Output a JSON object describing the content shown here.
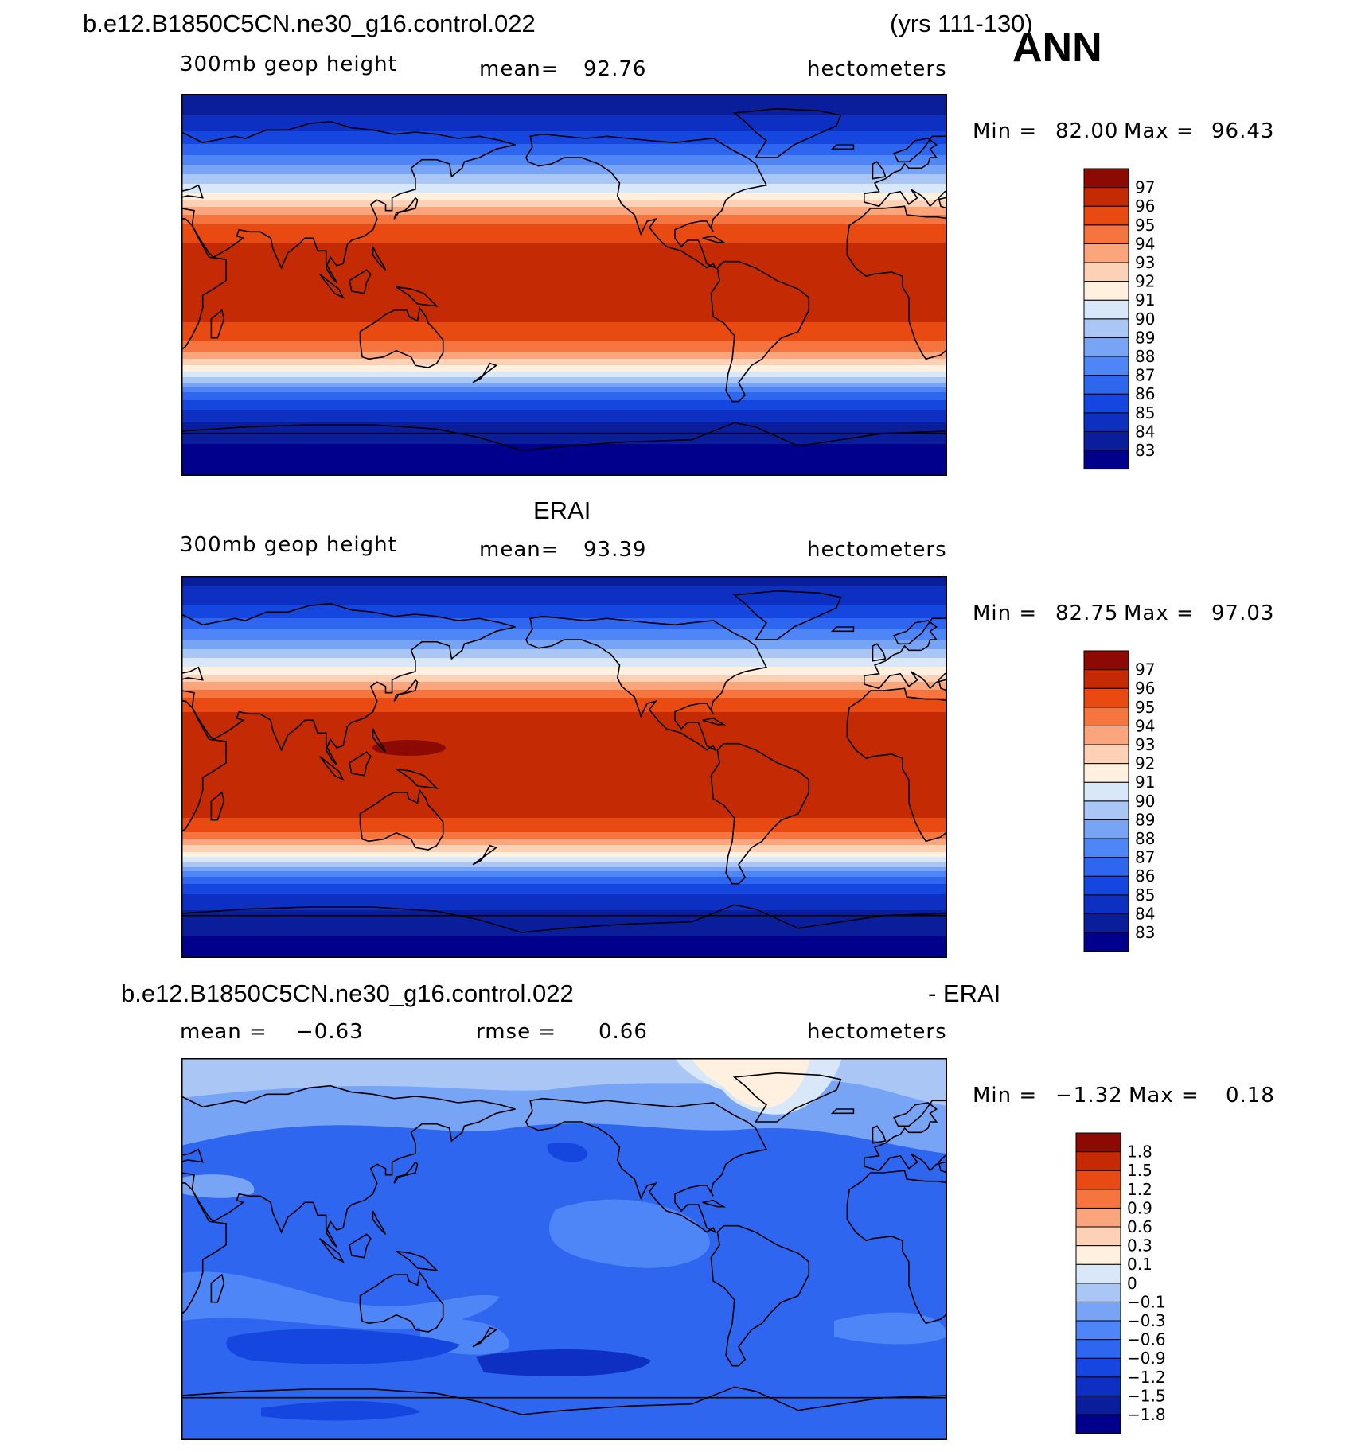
{
  "header": {
    "case_name": "b.e12.B1850C5CN.ne30_g16.control.022",
    "years": "(yrs 111-130)",
    "season": "ANN"
  },
  "colors": {
    "land_outline": "#000000",
    "panel_border": "#000000"
  },
  "chart_data": [
    {
      "type": "heatmap",
      "panel": "model",
      "variable": "300mb geop height",
      "mean_label": "mean=",
      "mean_value": "92.76",
      "units": "hectometers",
      "min_label": "Min =",
      "min_value": "82.00",
      "max_label": "Max =",
      "max_value": "96.43",
      "colorbar": {
        "labels": [
          "83",
          "84",
          "85",
          "86",
          "87",
          "88",
          "89",
          "90",
          "91",
          "92",
          "93",
          "94",
          "95",
          "96",
          "97"
        ],
        "colors": [
          "#00008c",
          "#0a1e9c",
          "#0d30c2",
          "#1547e0",
          "#2f66f0",
          "#4f86f7",
          "#78a4f5",
          "#a9c6f5",
          "#d8e8f8",
          "#fff0e0",
          "#fdd1b6",
          "#fba57c",
          "#f6753f",
          "#e84a12",
          "#c42a04",
          "#8c0a02"
        ]
      },
      "zonal_profile": [
        {
          "lat": 90,
          "value": 83.0
        },
        {
          "lat": 80,
          "value": 84.0
        },
        {
          "lat": 70,
          "value": 85.3
        },
        {
          "lat": 60,
          "value": 87.2
        },
        {
          "lat": 50,
          "value": 89.5
        },
        {
          "lat": 45,
          "value": 90.6
        },
        {
          "lat": 40,
          "value": 92.0
        },
        {
          "lat": 35,
          "value": 93.5
        },
        {
          "lat": 30,
          "value": 94.8
        },
        {
          "lat": 20,
          "value": 96.0
        },
        {
          "lat": 10,
          "value": 96.3
        },
        {
          "lat": 0,
          "value": 96.4
        },
        {
          "lat": -10,
          "value": 96.3
        },
        {
          "lat": -20,
          "value": 95.9
        },
        {
          "lat": -30,
          "value": 94.5
        },
        {
          "lat": -40,
          "value": 91.3
        },
        {
          "lat": -45,
          "value": 89.5
        },
        {
          "lat": -50,
          "value": 87.2
        },
        {
          "lat": -55,
          "value": 85.8
        },
        {
          "lat": -60,
          "value": 84.8
        },
        {
          "lat": -65,
          "value": 84.0
        },
        {
          "lat": -70,
          "value": 83.2
        },
        {
          "lat": -90,
          "value": 82.4
        }
      ]
    },
    {
      "type": "heatmap",
      "panel": "observations",
      "title": "ERAI",
      "variable": "300mb geop height",
      "mean_label": "mean=",
      "mean_value": "93.39",
      "units": "hectometers",
      "min_label": "Min =",
      "min_value": "82.75",
      "max_label": "Max =",
      "max_value": "97.03",
      "colorbar": {
        "labels": [
          "83",
          "84",
          "85",
          "86",
          "87",
          "88",
          "89",
          "90",
          "91",
          "92",
          "93",
          "94",
          "95",
          "96",
          "97"
        ],
        "colors": [
          "#00008c",
          "#0a1e9c",
          "#0d30c2",
          "#1547e0",
          "#2f66f0",
          "#4f86f7",
          "#78a4f5",
          "#a9c6f5",
          "#d8e8f8",
          "#fff0e0",
          "#fdd1b6",
          "#fba57c",
          "#f6753f",
          "#e84a12",
          "#c42a04",
          "#8c0a02"
        ]
      },
      "zonal_profile": [
        {
          "lat": 90,
          "value": 83.5
        },
        {
          "lat": 80,
          "value": 84.5
        },
        {
          "lat": 70,
          "value": 86.0
        },
        {
          "lat": 60,
          "value": 88.0
        },
        {
          "lat": 50,
          "value": 90.3
        },
        {
          "lat": 45,
          "value": 91.6
        },
        {
          "lat": 40,
          "value": 93.0
        },
        {
          "lat": 35,
          "value": 94.4
        },
        {
          "lat": 30,
          "value": 95.6
        },
        {
          "lat": 20,
          "value": 96.6
        },
        {
          "lat": 10,
          "value": 96.9
        },
        {
          "lat": 0,
          "value": 96.9
        },
        {
          "lat": -10,
          "value": 96.8
        },
        {
          "lat": -20,
          "value": 96.5
        },
        {
          "lat": -30,
          "value": 95.2
        },
        {
          "lat": -40,
          "value": 92.0
        },
        {
          "lat": -45,
          "value": 90.0
        },
        {
          "lat": -50,
          "value": 87.6
        },
        {
          "lat": -55,
          "value": 86.0
        },
        {
          "lat": -60,
          "value": 85.0
        },
        {
          "lat": -65,
          "value": 84.2
        },
        {
          "lat": -70,
          "value": 83.8
        },
        {
          "lat": -80,
          "value": 83.0
        },
        {
          "lat": -90,
          "value": 82.8
        }
      ]
    },
    {
      "type": "heatmap",
      "panel": "difference",
      "title_left": "b.e12.B1850C5CN.ne30_g16.control.022",
      "title_right": "- ERAI",
      "mean_label": "mean =",
      "mean_value": "−0.63",
      "rmse_label": "rmse =",
      "rmse_value": "0.66",
      "units": "hectometers",
      "min_label": "Min =",
      "min_value": "−1.32",
      "max_label": "Max =",
      "max_value": "0.18",
      "colorbar": {
        "labels": [
          "−1.8",
          "−1.5",
          "−1.2",
          "−0.9",
          "−0.6",
          "−0.3",
          "−0.1",
          "0",
          "0.1",
          "0.3",
          "0.6",
          "0.9",
          "1.2",
          "1.5",
          "1.8"
        ],
        "colors": [
          "#00008c",
          "#0a1e9c",
          "#0d30c2",
          "#1547e0",
          "#2f66f0",
          "#4f86f7",
          "#78a4f5",
          "#a9c6f5",
          "#d8e8f8",
          "#fff0e0",
          "#fdd1b6",
          "#fba57c",
          "#f6753f",
          "#e84a12",
          "#c42a04",
          "#8c0a02"
        ]
      }
    }
  ]
}
